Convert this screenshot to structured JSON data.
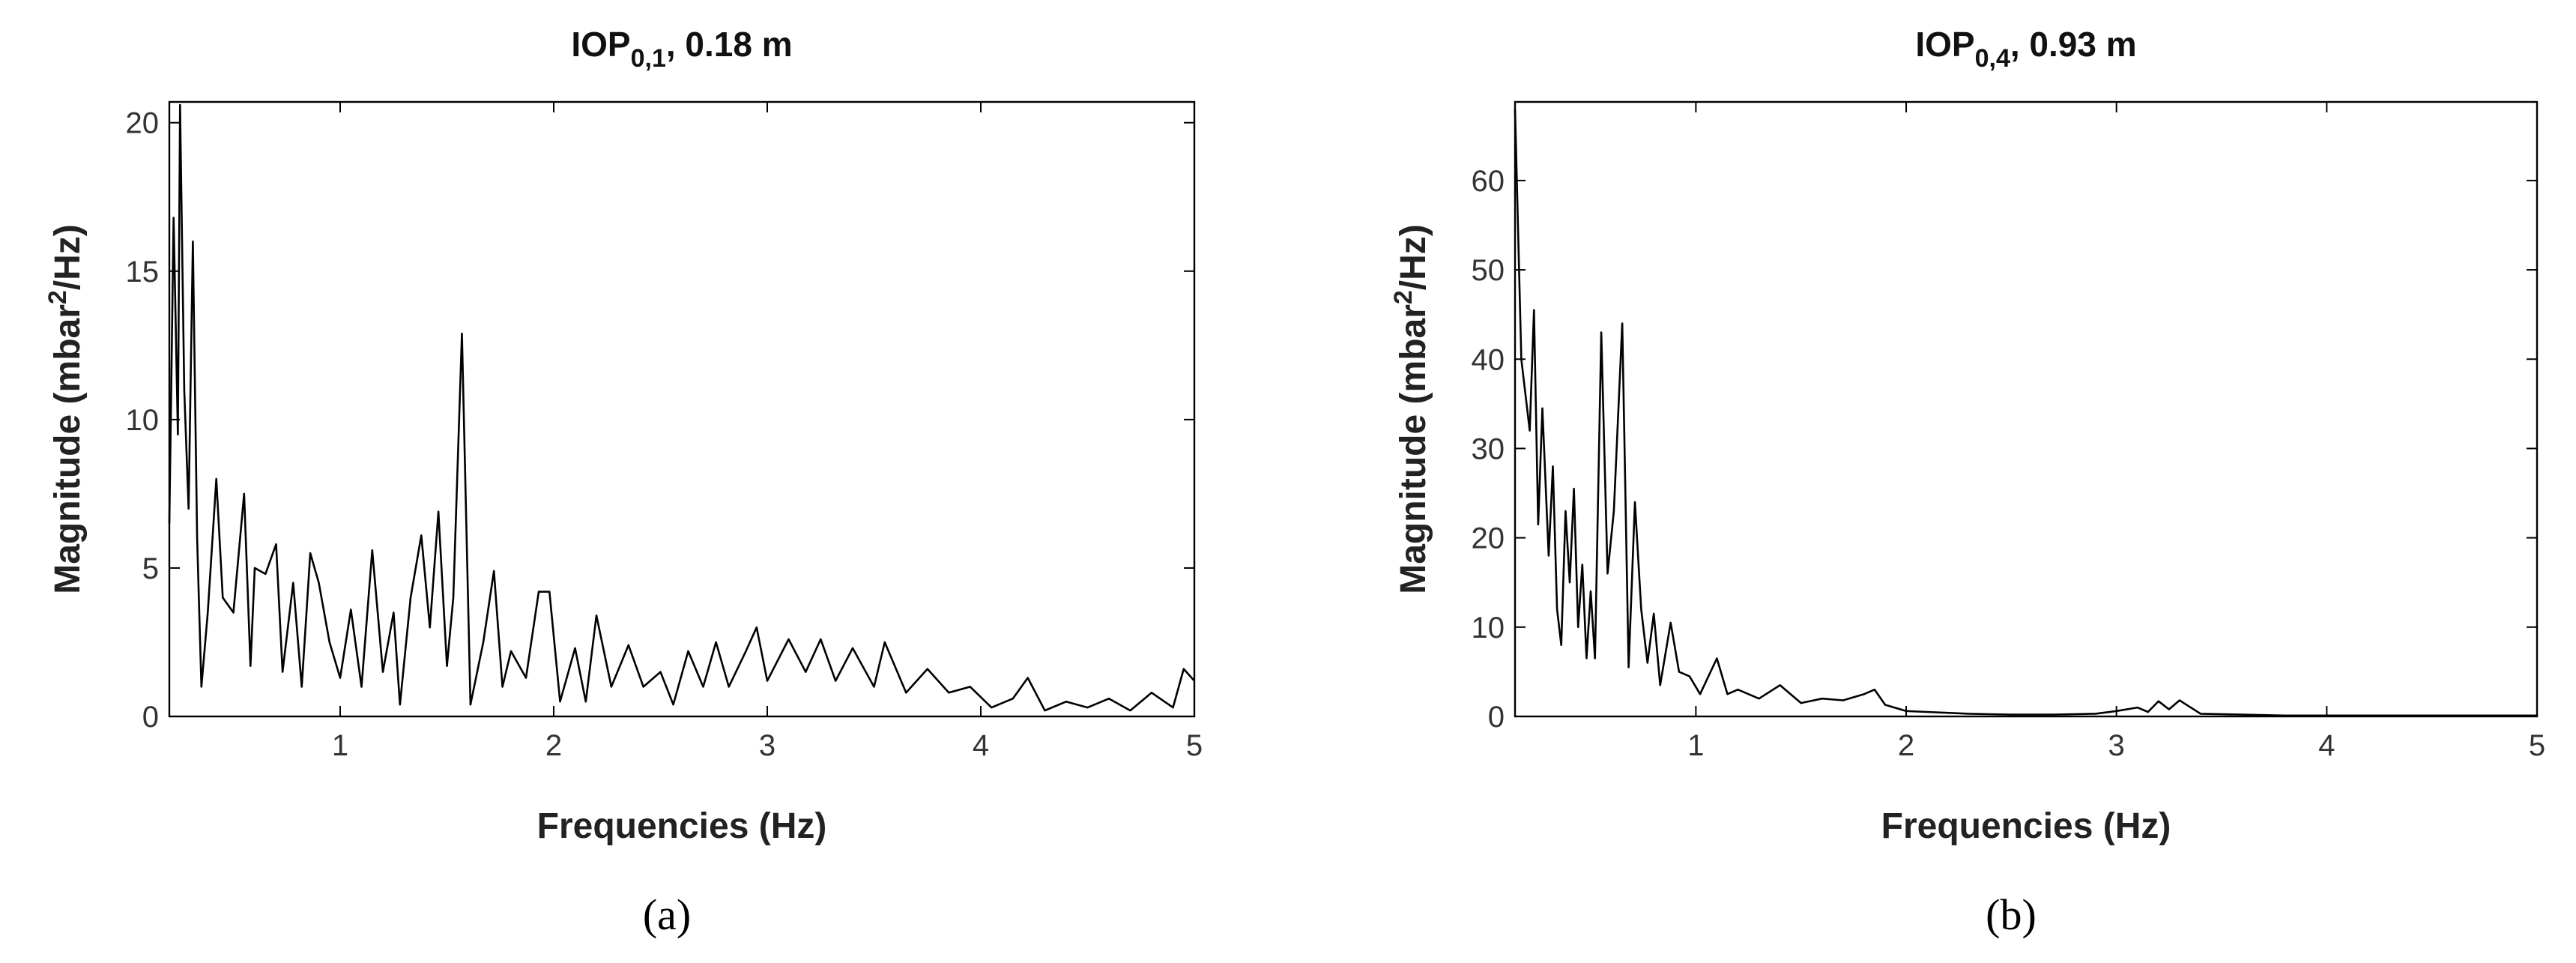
{
  "chart_data": [
    {
      "type": "line",
      "title": {
        "text": "IOP",
        "subscript": "0,1",
        "suffix": ", 0.18 m"
      },
      "x_label": "Frequencies (Hz)",
      "y_label": {
        "text": "Magnitude (mbar",
        "superscript": "2",
        "suffix": "/Hz)"
      },
      "panel_label": "(a)",
      "xlim": [
        0.2,
        5
      ],
      "xticks": [
        1,
        2,
        3,
        4,
        5
      ],
      "ylim": [
        0,
        20.7
      ],
      "yticks": [
        0,
        5,
        10,
        15,
        20
      ],
      "color": "#000000",
      "x": [
        0.2,
        0.22,
        0.24,
        0.25,
        0.27,
        0.29,
        0.31,
        0.33,
        0.35,
        0.38,
        0.42,
        0.45,
        0.5,
        0.55,
        0.58,
        0.6,
        0.65,
        0.7,
        0.73,
        0.78,
        0.82,
        0.86,
        0.9,
        0.95,
        1.0,
        1.05,
        1.1,
        1.15,
        1.2,
        1.25,
        1.28,
        1.33,
        1.38,
        1.42,
        1.46,
        1.5,
        1.53,
        1.57,
        1.61,
        1.67,
        1.72,
        1.76,
        1.8,
        1.87,
        1.93,
        1.98,
        2.03,
        2.1,
        2.15,
        2.2,
        2.27,
        2.35,
        2.42,
        2.5,
        2.56,
        2.63,
        2.7,
        2.76,
        2.82,
        2.9,
        2.95,
        3.0,
        3.1,
        3.18,
        3.25,
        3.32,
        3.4,
        3.5,
        3.55,
        3.65,
        3.75,
        3.85,
        3.95,
        4.05,
        4.15,
        4.22,
        4.3,
        4.4,
        4.5,
        4.6,
        4.7,
        4.8,
        4.9,
        4.95,
        5.0
      ],
      "values": [
        6.5,
        16.8,
        9.5,
        20.6,
        11,
        7,
        16,
        6,
        1,
        3.5,
        8,
        4,
        3.5,
        7.5,
        1.7,
        5,
        4.8,
        5.8,
        1.5,
        4.5,
        1,
        5.5,
        4.5,
        2.5,
        1.3,
        3.6,
        1,
        5.6,
        1.5,
        3.5,
        0.4,
        4,
        6.1,
        3,
        6.9,
        1.7,
        4,
        12.9,
        0.4,
        2.5,
        4.9,
        1,
        2.2,
        1.3,
        4.2,
        4.2,
        0.5,
        2.3,
        0.5,
        3.4,
        1,
        2.4,
        1,
        1.5,
        0.4,
        2.2,
        1,
        2.5,
        1,
        2.2,
        3,
        1.2,
        2.6,
        1.5,
        2.6,
        1.2,
        2.3,
        1,
        2.5,
        0.8,
        1.6,
        0.8,
        1,
        0.3,
        0.6,
        1.3,
        0.2,
        0.5,
        0.3,
        0.6,
        0.2,
        0.8,
        0.3,
        1.6,
        1.2
      ]
    },
    {
      "type": "line",
      "title": {
        "text": "IOP",
        "subscript": "0,4",
        "suffix": ", 0.93 m"
      },
      "x_label": "Frequencies (Hz)",
      "y_label": {
        "text": "Magnitude (mbar",
        "superscript": "2",
        "suffix": "/Hz)"
      },
      "panel_label": "(b)",
      "xlim": [
        0.14,
        5
      ],
      "xticks": [
        1,
        2,
        3,
        4,
        5
      ],
      "ylim": [
        0,
        68.8
      ],
      "yticks": [
        0,
        10,
        20,
        30,
        40,
        50,
        60
      ],
      "color": "#000000",
      "x": [
        0.14,
        0.17,
        0.21,
        0.23,
        0.25,
        0.27,
        0.3,
        0.32,
        0.34,
        0.36,
        0.38,
        0.4,
        0.42,
        0.44,
        0.46,
        0.48,
        0.5,
        0.52,
        0.55,
        0.58,
        0.61,
        0.65,
        0.68,
        0.71,
        0.74,
        0.77,
        0.8,
        0.83,
        0.88,
        0.92,
        0.97,
        1.02,
        1.1,
        1.15,
        1.2,
        1.3,
        1.4,
        1.5,
        1.6,
        1.7,
        1.8,
        1.85,
        1.9,
        2.0,
        2.1,
        2.3,
        2.5,
        2.7,
        2.9,
        3.0,
        3.1,
        3.15,
        3.2,
        3.25,
        3.3,
        3.4,
        3.6,
        3.8,
        4.0,
        4.5,
        5.0
      ],
      "values": [
        68,
        40,
        32,
        45.5,
        21.5,
        34.5,
        18,
        28,
        12,
        8,
        23,
        15,
        25.5,
        10,
        17,
        6.5,
        14,
        6.5,
        43,
        16,
        23,
        44,
        5.5,
        24,
        12,
        6,
        11.5,
        3.5,
        10.5,
        5,
        4.5,
        2.5,
        6.5,
        2.5,
        3,
        2,
        3.5,
        1.5,
        2,
        1.8,
        2.5,
        3,
        1.3,
        0.6,
        0.5,
        0.3,
        0.2,
        0.2,
        0.3,
        0.6,
        1,
        0.5,
        1.7,
        0.8,
        1.8,
        0.3,
        0.2,
        0.1,
        0.1,
        0.1,
        0.1
      ]
    }
  ]
}
